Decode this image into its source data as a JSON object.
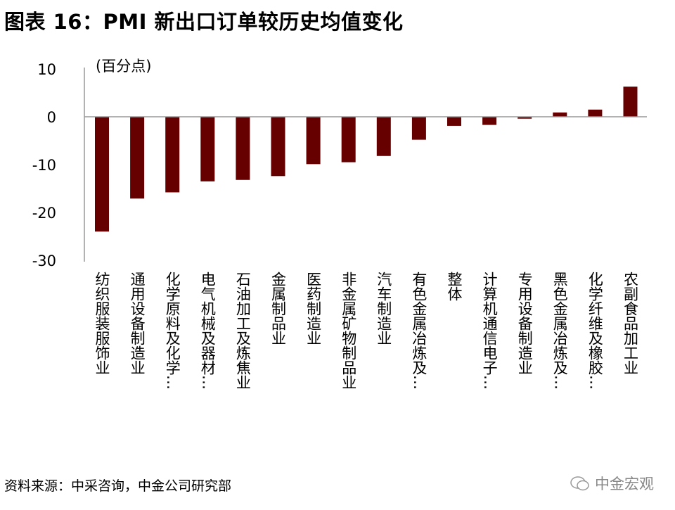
{
  "title": "图表 16：PMI 新出口订单较历史均值变化",
  "source": "资料来源：中采咨询，中金公司研究部",
  "watermark": "中金宏观",
  "chart_data": {
    "type": "bar",
    "title": "图表 16：PMI 新出口订单较历史均值变化",
    "ylabel": "(百分点)",
    "xlabel": "",
    "ylim": [
      -30,
      10
    ],
    "yticks": [
      10,
      0,
      -10,
      -20,
      -30
    ],
    "ytick_labels": [
      "10",
      "0",
      "-10",
      "-20",
      "-30"
    ],
    "grid": false,
    "bar_color": "#660000",
    "categories": [
      "纺织服装服饰业",
      "通用设备制造业",
      "化学原料及化学…",
      "电气机械及器材…",
      "石油加工及炼焦业",
      "金属制品业",
      "医药制造业",
      "非金属矿物制品业",
      "汽车制造业",
      "有色金属冶炼及…",
      "整体",
      "计算机通信电子…",
      "专用设备制造业",
      "黑色金属冶炼及…",
      "化学纤维及橡胶…",
      "农副食品加工业"
    ],
    "values": [
      -24.0,
      -17.1,
      -15.8,
      -13.5,
      -13.2,
      -12.4,
      -9.9,
      -9.5,
      -8.2,
      -4.8,
      -1.9,
      -1.7,
      -0.4,
      0.9,
      1.5,
      6.3
    ]
  }
}
